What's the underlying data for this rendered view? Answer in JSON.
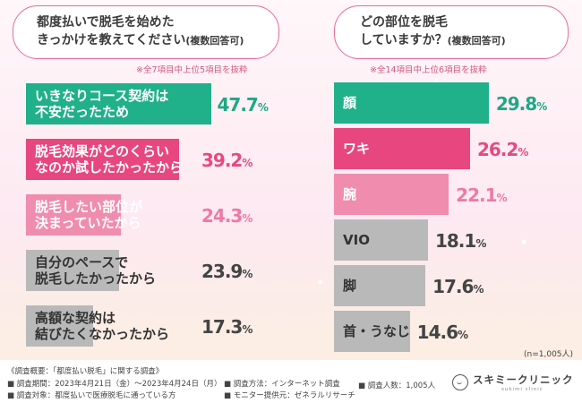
{
  "left_panel": {
    "question_line1": "都度払いで脱毛を始めた",
    "question_line2": "きっかけを教えてください",
    "question_suffix": "(複数回答可)",
    "note": "※全7項目中上位5項目を抜粋"
  },
  "right_panel": {
    "question_line1": "どの部位を脱毛",
    "question_line2": "していますか？",
    "question_suffix": "(複数回答可)",
    "note": "※全14項目中上位6項目を抜粋",
    "sample": "(n=1,005人)"
  },
  "chart_data": [
    {
      "type": "bar",
      "orientation": "horizontal",
      "categories": [
        "いきなりコース契約は不安だったため",
        "脱毛効果がどのくらいなのか試したかったから",
        "脱毛したい部位が決まっていたから",
        "自分のペースで脱毛したかったから",
        "高額な契約は結びたくなかったから"
      ],
      "labels": [
        [
          "いきなりコース契約は",
          "不安だったため"
        ],
        [
          "脱毛効果がどのくらい",
          "なのか試したかったから"
        ],
        [
          "脱毛したい部位が",
          "決まっていたから"
        ],
        [
          "自分のペースで",
          "脱毛したかったから"
        ],
        [
          "高額な契約は",
          "結びたくなかったから"
        ]
      ],
      "values": [
        47.7,
        39.2,
        24.3,
        23.9,
        17.3
      ],
      "value_text": [
        "47.7",
        "39.2",
        "24.3",
        "23.9",
        "17.3"
      ],
      "unit": "%",
      "colors": [
        "#20b08a",
        "#e8467e",
        "#f08cae",
        "#b9b9b9",
        "#b9b9b9"
      ],
      "value_colors": [
        "#1ea884",
        "#e64a80",
        "#ee7aa4",
        "#444444",
        "#444444"
      ],
      "label_dark": [
        false,
        false,
        false,
        true,
        true
      ]
    },
    {
      "type": "bar",
      "orientation": "horizontal",
      "categories": [
        "顔",
        "ワキ",
        "腕",
        "VIO",
        "脚",
        "首・うなじ"
      ],
      "labels": [
        [
          "顔"
        ],
        [
          "ワキ"
        ],
        [
          "腕"
        ],
        [
          "VIO"
        ],
        [
          "脚"
        ],
        [
          "首・うなじ"
        ]
      ],
      "values": [
        29.8,
        26.2,
        22.1,
        18.1,
        17.6,
        14.6
      ],
      "value_text": [
        "29.8",
        "26.2",
        "22.1",
        "18.1",
        "17.6",
        "14.6"
      ],
      "unit": "%",
      "colors": [
        "#20b08a",
        "#e8467e",
        "#f08cae",
        "#b9b9b9",
        "#b9b9b9",
        "#b9b9b9"
      ],
      "value_colors": [
        "#1ea884",
        "#e64a80",
        "#ee7aa4",
        "#444444",
        "#444444",
        "#444444"
      ],
      "label_dark": [
        false,
        false,
        false,
        true,
        true,
        true
      ]
    }
  ],
  "footer": {
    "overview": "《調査概要：「都度払い脱毛」に関する調査》",
    "period": "■ 調査期間：2023年4月21日（金）〜2023年4月24日（月）",
    "target": "■ 調査対象：都度払いで医療脱毛に通っている方",
    "method": "■ 調査方法：インターネット調査",
    "provider": "■ モニター提供元：ゼネラルリサーチ",
    "count": "■ 調査人数：1,005人",
    "logo": "スキミークリニック",
    "logo_sub": "sukimi clinic"
  }
}
